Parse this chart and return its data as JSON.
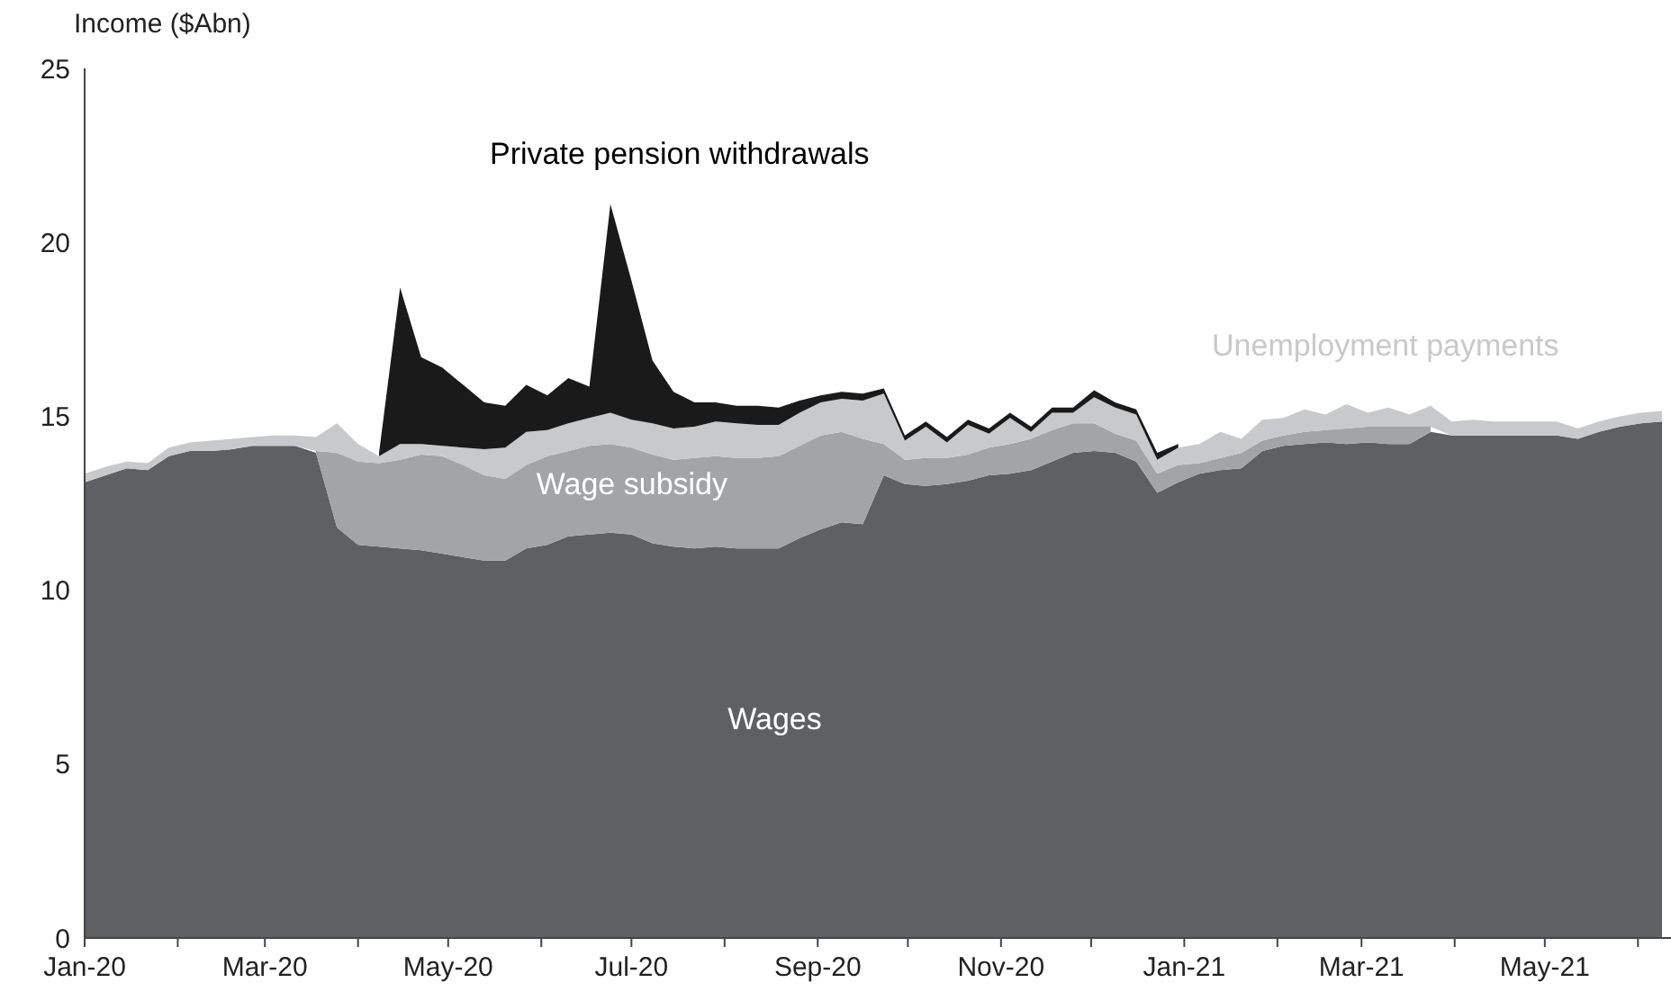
{
  "chart_data": {
    "type": "area",
    "stacked": true,
    "ylabel": "Income ($Abn)",
    "legend": false,
    "grid": false,
    "x": [
      "2020-01-01",
      "2020-01-08",
      "2020-01-15",
      "2020-01-22",
      "2020-01-29",
      "2020-02-05",
      "2020-02-12",
      "2020-02-19",
      "2020-02-26",
      "2020-03-04",
      "2020-03-11",
      "2020-03-18",
      "2020-03-25",
      "2020-04-01",
      "2020-04-08",
      "2020-04-15",
      "2020-04-22",
      "2020-04-29",
      "2020-05-06",
      "2020-05-13",
      "2020-05-20",
      "2020-05-27",
      "2020-06-03",
      "2020-06-10",
      "2020-06-17",
      "2020-06-24",
      "2020-07-01",
      "2020-07-08",
      "2020-07-15",
      "2020-07-22",
      "2020-07-29",
      "2020-08-05",
      "2020-08-12",
      "2020-08-19",
      "2020-08-26",
      "2020-09-02",
      "2020-09-09",
      "2020-09-16",
      "2020-09-23",
      "2020-09-30",
      "2020-10-07",
      "2020-10-14",
      "2020-10-21",
      "2020-10-28",
      "2020-11-04",
      "2020-11-11",
      "2020-11-18",
      "2020-11-25",
      "2020-12-02",
      "2020-12-09",
      "2020-12-16",
      "2020-12-23",
      "2020-12-30",
      "2021-01-06",
      "2021-01-13",
      "2021-01-20",
      "2021-01-27",
      "2021-02-03",
      "2021-02-10",
      "2021-02-17",
      "2021-02-24",
      "2021-03-03",
      "2021-03-10",
      "2021-03-17",
      "2021-03-24",
      "2021-03-31",
      "2021-04-07",
      "2021-04-14",
      "2021-04-21",
      "2021-04-28",
      "2021-05-05",
      "2021-05-12",
      "2021-05-19",
      "2021-05-26",
      "2021-06-02",
      "2021-06-09"
    ],
    "series": [
      {
        "name": "Wages",
        "color": "#5f6062",
        "values": [
          13.1,
          13.3,
          13.5,
          13.45,
          13.85,
          14.0,
          14.0,
          14.05,
          14.15,
          14.15,
          14.15,
          13.95,
          11.8,
          11.3,
          11.25,
          11.2,
          11.15,
          11.05,
          10.95,
          10.85,
          10.85,
          11.2,
          11.3,
          11.55,
          11.6,
          11.65,
          11.6,
          11.35,
          11.25,
          11.2,
          11.25,
          11.2,
          11.2,
          11.2,
          11.5,
          11.75,
          11.95,
          11.9,
          13.3,
          13.05,
          13.0,
          13.05,
          13.15,
          13.3,
          13.35,
          13.45,
          13.7,
          13.95,
          14.0,
          13.95,
          13.7,
          12.8,
          13.1,
          13.35,
          13.45,
          13.5,
          14.0,
          14.15,
          14.2,
          14.25,
          14.2,
          14.25,
          14.2,
          14.2,
          14.55,
          14.45,
          14.45,
          14.45,
          14.45,
          14.45,
          14.45,
          14.35,
          14.55,
          14.7,
          14.8,
          14.85
        ]
      },
      {
        "name": "Wage subsidy",
        "color": "#a3a4a6",
        "values": [
          null,
          null,
          null,
          null,
          null,
          null,
          null,
          null,
          null,
          null,
          null,
          0.05,
          2.15,
          2.4,
          2.4,
          2.55,
          2.75,
          2.8,
          2.65,
          2.45,
          2.35,
          2.4,
          2.55,
          2.45,
          2.55,
          2.55,
          2.5,
          2.55,
          2.5,
          2.6,
          2.6,
          2.6,
          2.6,
          2.65,
          2.65,
          2.7,
          2.6,
          2.45,
          0.9,
          0.7,
          0.8,
          0.75,
          0.75,
          0.8,
          0.85,
          0.9,
          0.9,
          0.85,
          0.8,
          0.55,
          0.6,
          0.55,
          0.5,
          0.3,
          0.35,
          0.45,
          0.3,
          0.3,
          0.35,
          0.35,
          0.45,
          0.45,
          0.5,
          0.5,
          0.15,
          null,
          null,
          null,
          null,
          null,
          null,
          null,
          null,
          null,
          null,
          null
        ]
      },
      {
        "name": "Unemployment payments",
        "color": "#c8c9cb",
        "values": [
          0.25,
          0.25,
          0.2,
          0.2,
          0.25,
          0.25,
          0.3,
          0.3,
          0.25,
          0.3,
          0.3,
          0.4,
          0.85,
          0.5,
          0.2,
          0.45,
          0.3,
          0.3,
          0.5,
          0.75,
          0.9,
          0.95,
          0.75,
          0.8,
          0.8,
          0.9,
          0.8,
          0.9,
          0.9,
          0.9,
          1.0,
          1.0,
          0.95,
          0.9,
          0.95,
          0.95,
          0.95,
          1.1,
          1.45,
          0.55,
          0.9,
          0.45,
          0.85,
          0.4,
          0.75,
          0.2,
          0.5,
          0.3,
          0.75,
          0.75,
          0.75,
          0.4,
          0.5,
          0.55,
          0.75,
          0.4,
          0.6,
          0.5,
          0.65,
          0.45,
          0.7,
          0.4,
          0.55,
          0.35,
          0.6,
          0.4,
          0.45,
          0.4,
          0.4,
          0.4,
          0.4,
          0.3,
          0.3,
          0.3,
          0.3,
          0.3
        ]
      },
      {
        "name": "Private pension withdrawals",
        "color": "#1a1a1a",
        "values": [
          null,
          null,
          null,
          null,
          null,
          null,
          null,
          null,
          null,
          null,
          null,
          null,
          null,
          null,
          0.1,
          4.5,
          2.5,
          2.25,
          1.8,
          1.35,
          1.2,
          1.35,
          1.0,
          1.3,
          0.9,
          6.0,
          4.0,
          1.8,
          1.05,
          0.7,
          0.55,
          0.5,
          0.55,
          0.5,
          0.35,
          0.2,
          0.2,
          0.2,
          0.15,
          0.15,
          0.15,
          0.15,
          0.15,
          0.15,
          0.15,
          0.15,
          0.15,
          0.15,
          0.2,
          0.15,
          0.15,
          0.2,
          0.1,
          null,
          null,
          null,
          null,
          null,
          null,
          null,
          null,
          null,
          null,
          null,
          null,
          null,
          null,
          null,
          null,
          null,
          null,
          null,
          null,
          null,
          null,
          null
        ]
      }
    ],
    "xlim": [
      "2020-01-01",
      "2021-06-12"
    ],
    "xticks": [
      {
        "value": "2020-01",
        "label": "Jan-20"
      },
      {
        "value": "2020-02",
        "label": null
      },
      {
        "value": "2020-03",
        "label": "Mar-20"
      },
      {
        "value": "2020-04",
        "label": null
      },
      {
        "value": "2020-05",
        "label": "May-20"
      },
      {
        "value": "2020-06",
        "label": null
      },
      {
        "value": "2020-07",
        "label": "Jul-20"
      },
      {
        "value": "2020-08",
        "label": null
      },
      {
        "value": "2020-09",
        "label": "Sep-20"
      },
      {
        "value": "2020-10",
        "label": null
      },
      {
        "value": "2020-11",
        "label": "Nov-20"
      },
      {
        "value": "2020-12",
        "label": null
      },
      {
        "value": "2021-01",
        "label": "Jan-21"
      },
      {
        "value": "2021-02",
        "label": null
      },
      {
        "value": "2021-03",
        "label": "Mar-21"
      },
      {
        "value": "2021-04",
        "label": null
      },
      {
        "value": "2021-05",
        "label": "May-21"
      },
      {
        "value": "2021-06",
        "label": null
      }
    ],
    "ylim": [
      0,
      25
    ],
    "yticks": [
      0,
      5,
      10,
      15,
      20,
      25
    ]
  }
}
